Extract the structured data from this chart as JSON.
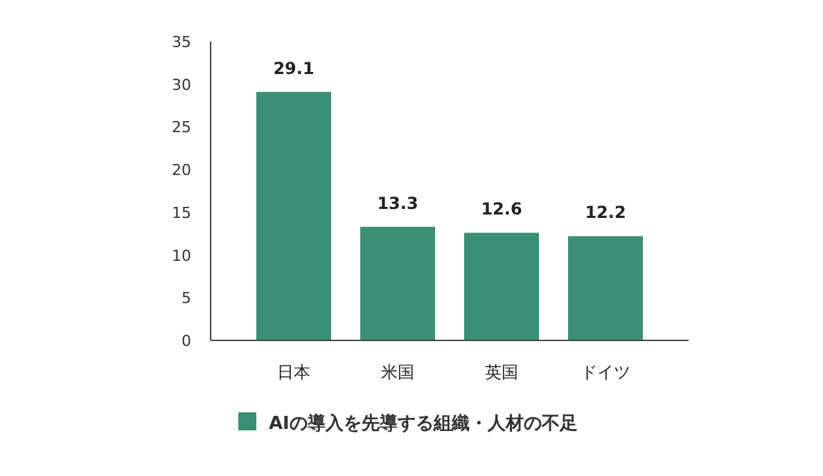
{
  "chart_data": {
    "type": "bar",
    "categories": [
      "日本",
      "米国",
      "英国",
      "ドイツ"
    ],
    "series": [
      {
        "name": "AIの導入を先導する組織・人材の不足",
        "color": "#3a8f74",
        "values": [
          29.1,
          13.3,
          12.6,
          12.2
        ]
      }
    ],
    "ylim": [
      0,
      35
    ],
    "yticks": [
      0,
      5,
      10,
      15,
      20,
      25,
      30,
      35
    ],
    "data_labels": true,
    "legend": "bottom",
    "grid": false
  }
}
